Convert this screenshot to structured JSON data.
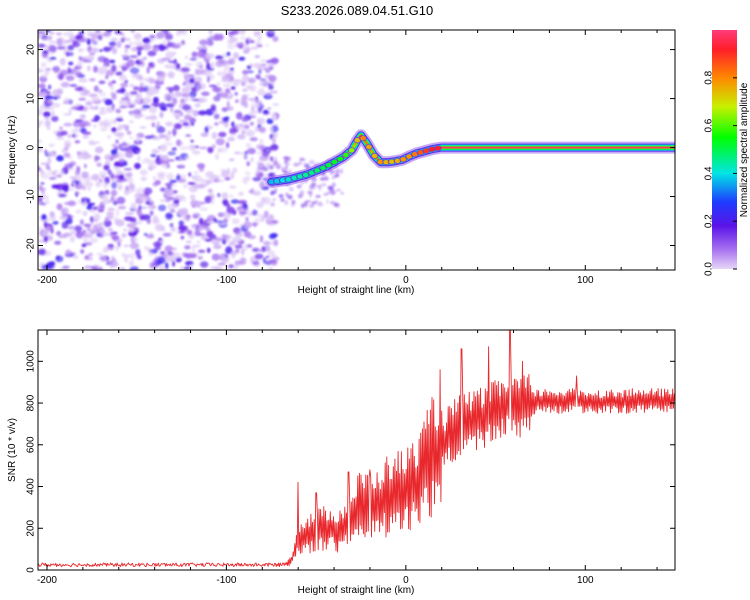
{
  "figure": {
    "title": "S233.2026.089.04.51.G10"
  },
  "chart_data": [
    {
      "type": "heatmap",
      "title": "S233.2026.089.04.51.G10",
      "xlabel": "Height of straight line (km)",
      "ylabel": "Frequency (Hz)",
      "xlim": [
        -205,
        150
      ],
      "ylim": [
        -25,
        24
      ],
      "xticks": [
        -200,
        -100,
        0,
        100
      ],
      "yticks": [
        -20,
        -10,
        0,
        10,
        20
      ],
      "noise_region_x": [
        -205,
        -72
      ],
      "signal_ridge": {
        "x": [
          -75,
          -65,
          -55,
          -45,
          -35,
          -30,
          -27,
          -25,
          -22,
          -18,
          -14,
          -10,
          -6,
          -2,
          2,
          6,
          10,
          15,
          20,
          25,
          30,
          40,
          50,
          60,
          80,
          100,
          120,
          150
        ],
        "frequency": [
          -7,
          -6.5,
          -5.5,
          -4,
          -2,
          -0.5,
          1.5,
          2.5,
          1,
          -1.5,
          -3,
          -3,
          -2.8,
          -2.5,
          -1.8,
          -1.2,
          -0.8,
          -0.3,
          0,
          0,
          0,
          0,
          0,
          0,
          0,
          0,
          0,
          0
        ],
        "amplitude": [
          0.4,
          0.45,
          0.5,
          0.55,
          0.6,
          0.7,
          0.8,
          0.9,
          0.85,
          0.8,
          0.85,
          0.8,
          0.8,
          0.85,
          0.85,
          0.9,
          0.95,
          1.0,
          1.0,
          1.0,
          1.0,
          1.0,
          1.0,
          1.0,
          1.0,
          1.0,
          1.0,
          1.0
        ]
      },
      "colorbar": {
        "label": "Normalized spectral amplitude",
        "range": [
          0,
          1
        ],
        "ticks": [
          "0.0",
          "0.2",
          "0.4",
          "0.6",
          "0.8"
        ],
        "tick_values": [
          0,
          0.2,
          0.4,
          0.6,
          0.8
        ]
      }
    },
    {
      "type": "line",
      "xlabel": "Height of straight line (km)",
      "ylabel": "SNR (10 * v/v)",
      "xlim": [
        -205,
        150
      ],
      "ylim": [
        0,
        1150
      ],
      "xticks": [
        -200,
        -100,
        0,
        100
      ],
      "yticks": [
        0,
        200,
        400,
        600,
        800,
        1000
      ],
      "color": "#e8282c",
      "envelope": {
        "x": [
          -205,
          -70,
          -64,
          -60,
          -52,
          -45,
          -38,
          -32,
          -25,
          -20,
          -15,
          -10,
          -5,
          0,
          5,
          10,
          15,
          20,
          25,
          30,
          40,
          50,
          57,
          65,
          75,
          90,
          110,
          130,
          150
        ],
        "y": [
          25,
          25,
          40,
          150,
          180,
          200,
          190,
          220,
          320,
          300,
          320,
          360,
          370,
          380,
          410,
          470,
          540,
          600,
          650,
          700,
          720,
          760,
          790,
          780,
          810,
          810,
          805,
          810,
          810
        ]
      },
      "spikes": [
        {
          "x": -60,
          "y": 420
        },
        {
          "x": -50,
          "y": 370
        },
        {
          "x": -32,
          "y": 470
        },
        {
          "x": -20,
          "y": 480
        },
        {
          "x": 19,
          "y": 960
        },
        {
          "x": 31,
          "y": 1060
        },
        {
          "x": 46,
          "y": 1070
        },
        {
          "x": 58,
          "y": 1150
        },
        {
          "x": 65,
          "y": 1000
        },
        {
          "x": 95,
          "y": 930
        }
      ]
    }
  ]
}
